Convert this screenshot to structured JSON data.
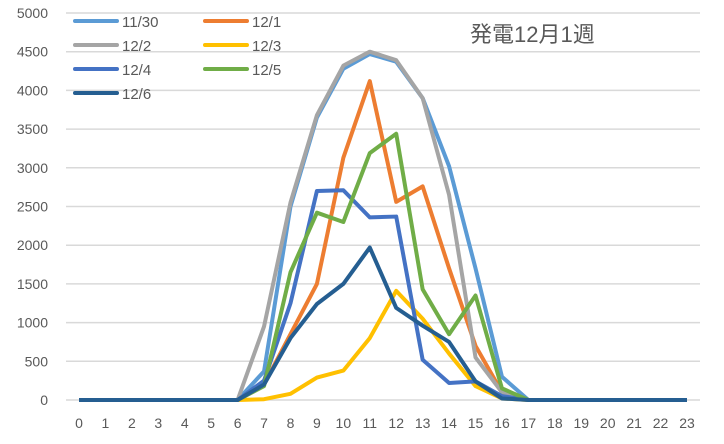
{
  "chart_data": {
    "type": "line",
    "title": "発電12月1週",
    "xlabel": "",
    "ylabel": "",
    "ylim": [
      0,
      5000
    ],
    "yticks": [
      0,
      500,
      1000,
      1500,
      2000,
      2500,
      3000,
      3500,
      4000,
      4500,
      5000
    ],
    "x": [
      0,
      1,
      2,
      3,
      4,
      5,
      6,
      7,
      8,
      9,
      10,
      11,
      12,
      13,
      14,
      15,
      16,
      17,
      18,
      19,
      20,
      21,
      22,
      23
    ],
    "grid": "horizontal",
    "legend": "top-left",
    "series": [
      {
        "name": "11/30",
        "color": "#5B9BD5",
        "values": [
          0,
          0,
          0,
          0,
          0,
          0,
          0,
          370,
          2500,
          3650,
          4280,
          4470,
          4370,
          3900,
          3020,
          1700,
          300,
          0,
          0,
          0,
          0,
          0,
          0,
          0
        ]
      },
      {
        "name": "12/1",
        "color": "#ED7D31",
        "values": [
          0,
          0,
          0,
          0,
          0,
          0,
          0,
          200,
          850,
          1500,
          3130,
          4120,
          2560,
          2760,
          1700,
          700,
          100,
          0,
          0,
          0,
          0,
          0,
          0,
          0
        ]
      },
      {
        "name": "12/2",
        "color": "#A5A5A5",
        "values": [
          0,
          0,
          0,
          0,
          0,
          0,
          0,
          950,
          2550,
          3680,
          4320,
          4500,
          4390,
          3900,
          2650,
          550,
          100,
          0,
          0,
          0,
          0,
          0,
          0,
          0
        ]
      },
      {
        "name": "12/3",
        "color": "#FFC000",
        "values": [
          0,
          0,
          0,
          0,
          0,
          0,
          0,
          10,
          80,
          290,
          380,
          800,
          1410,
          1050,
          600,
          180,
          20,
          0,
          0,
          0,
          0,
          0,
          0,
          0
        ]
      },
      {
        "name": "12/4",
        "color": "#4472C4",
        "values": [
          0,
          0,
          0,
          0,
          0,
          0,
          0,
          250,
          1250,
          2700,
          2710,
          2360,
          2370,
          520,
          220,
          240,
          50,
          0,
          0,
          0,
          0,
          0,
          0,
          0
        ]
      },
      {
        "name": "12/5",
        "color": "#70AD47",
        "values": [
          0,
          0,
          0,
          0,
          0,
          0,
          0,
          180,
          1650,
          2420,
          2300,
          3190,
          3440,
          1430,
          850,
          1350,
          150,
          0,
          0,
          0,
          0,
          0,
          0,
          0
        ]
      },
      {
        "name": "12/6",
        "color": "#255E91",
        "values": [
          0,
          0,
          0,
          0,
          0,
          0,
          0,
          200,
          800,
          1240,
          1500,
          1970,
          1190,
          960,
          750,
          240,
          20,
          0,
          0,
          0,
          0,
          0,
          0,
          0
        ]
      }
    ]
  }
}
